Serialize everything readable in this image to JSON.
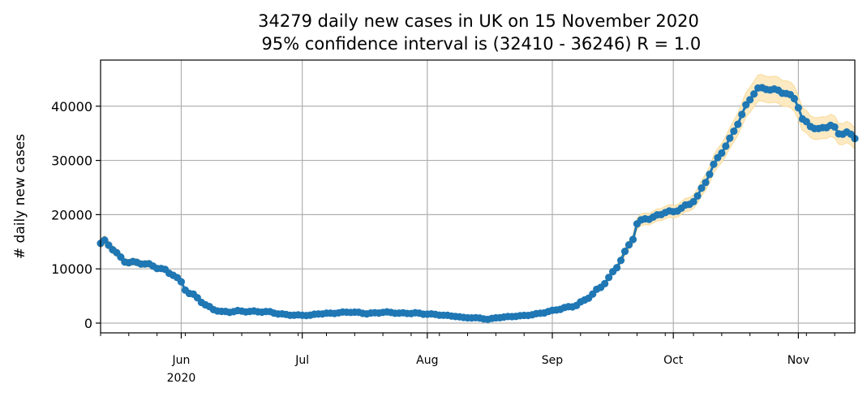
{
  "chart_data": {
    "type": "scatter",
    "title_line1": "34279 daily new cases in UK on 15 November 2020",
    "title_line2": " 95% confidence interval is (32410 - 36246) R = 1.0",
    "xlabel": "",
    "ylabel": "# daily new cases",
    "x_start_date": "2020-05-12",
    "x_range_days": [
      0,
      187
    ],
    "ylim": [
      -1800,
      48500
    ],
    "grid": true,
    "y_ticks": [
      {
        "value": 0,
        "label": "0"
      },
      {
        "value": 10000,
        "label": "10000"
      },
      {
        "value": 20000,
        "label": "20000"
      },
      {
        "value": 30000,
        "label": "30000"
      },
      {
        "value": 40000,
        "label": "40000"
      }
    ],
    "x_ticks": [
      {
        "day": 20,
        "label": "Jun",
        "sublabel": "2020"
      },
      {
        "day": 50,
        "label": "Jul",
        "sublabel": ""
      },
      {
        "day": 81,
        "label": "Aug",
        "sublabel": ""
      },
      {
        "day": 112,
        "label": "Sep",
        "sublabel": ""
      },
      {
        "day": 142,
        "label": "Oct",
        "sublabel": ""
      },
      {
        "day": 173,
        "label": "Nov",
        "sublabel": ""
      }
    ],
    "series": [
      {
        "name": "daily new cases",
        "color": "#1f77b4",
        "band_color": "#fde8bd",
        "ci_fraction": 0.056,
        "keypoints": [
          [
            0,
            14700
          ],
          [
            1,
            15000
          ],
          [
            3,
            13600
          ],
          [
            5,
            12000
          ],
          [
            6,
            11500
          ],
          [
            8,
            11300
          ],
          [
            10,
            11100
          ],
          [
            12,
            10600
          ],
          [
            14,
            10200
          ],
          [
            16,
            9800
          ],
          [
            18,
            9100
          ],
          [
            20,
            7500
          ],
          [
            21,
            6200
          ],
          [
            22,
            5400
          ],
          [
            24,
            4600
          ],
          [
            26,
            3400
          ],
          [
            28,
            2600
          ],
          [
            30,
            2100
          ],
          [
            32,
            2000
          ],
          [
            34,
            2200
          ],
          [
            38,
            2200
          ],
          [
            42,
            2000
          ],
          [
            44,
            1700
          ],
          [
            48,
            1500
          ],
          [
            52,
            1400
          ],
          [
            54,
            1700
          ],
          [
            58,
            1900
          ],
          [
            62,
            2000
          ],
          [
            66,
            1800
          ],
          [
            70,
            2000
          ],
          [
            74,
            1800
          ],
          [
            78,
            1900
          ],
          [
            80,
            1700
          ],
          [
            84,
            1500
          ],
          [
            88,
            1300
          ],
          [
            90,
            1000
          ],
          [
            94,
            900
          ],
          [
            96,
            700
          ],
          [
            98,
            1000
          ],
          [
            100,
            1100
          ],
          [
            104,
            1300
          ],
          [
            108,
            1700
          ],
          [
            112,
            2200
          ],
          [
            115,
            2800
          ],
          [
            118,
            3400
          ],
          [
            120,
            4200
          ],
          [
            122,
            5200
          ],
          [
            124,
            6600
          ],
          [
            126,
            8400
          ],
          [
            128,
            10500
          ],
          [
            130,
            13000
          ],
          [
            132,
            15500
          ],
          [
            133,
            18200
          ],
          [
            135,
            19300
          ],
          [
            137,
            19600
          ],
          [
            139,
            20200
          ],
          [
            140,
            20500
          ],
          [
            142,
            20300
          ],
          [
            144,
            21200
          ],
          [
            146,
            22000
          ],
          [
            148,
            23500
          ],
          [
            150,
            26000
          ],
          [
            152,
            29000
          ],
          [
            154,
            31500
          ],
          [
            156,
            34000
          ],
          [
            158,
            37000
          ],
          [
            160,
            40000
          ],
          [
            162,
            42300
          ],
          [
            163,
            43100
          ],
          [
            165,
            43300
          ],
          [
            168,
            43000
          ],
          [
            170,
            42300
          ],
          [
            172,
            41300
          ],
          [
            173,
            39800
          ],
          [
            174,
            37500
          ],
          [
            176,
            36500
          ],
          [
            178,
            35800
          ],
          [
            180,
            36200
          ],
          [
            181,
            36400
          ],
          [
            182,
            35800
          ],
          [
            183,
            34800
          ],
          [
            185,
            35200
          ],
          [
            187,
            34300
          ]
        ]
      }
    ]
  }
}
